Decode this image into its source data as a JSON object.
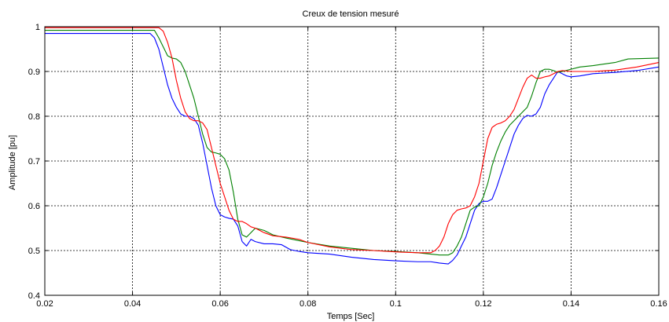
{
  "chart_data": {
    "type": "line",
    "title": "Creux de tension mesuré",
    "xlabel": "Temps [Sec]",
    "ylabel": "Amplitude [pu]",
    "xlim": [
      0.02,
      0.16
    ],
    "ylim": [
      0.4,
      1.0
    ],
    "xticks": [
      0.02,
      0.04,
      0.06,
      0.08,
      0.1,
      0.12,
      0.14,
      0.16
    ],
    "xtick_labels": [
      "0.02",
      "0.04",
      "0.06",
      "0.08",
      "0.1",
      "0.12",
      "0.14",
      "0.16"
    ],
    "yticks": [
      0.4,
      0.5,
      0.6,
      0.7,
      0.8,
      0.9,
      1.0
    ],
    "ytick_labels": [
      "0.4",
      "0.5",
      "0.6",
      "0.7",
      "0.8",
      "0.9",
      "1"
    ],
    "grid": true,
    "series": [
      {
        "color": "#0000ff",
        "points": [
          [
            0.02,
            0.985
          ],
          [
            0.044,
            0.985
          ],
          [
            0.045,
            0.975
          ],
          [
            0.046,
            0.95
          ],
          [
            0.047,
            0.91
          ],
          [
            0.048,
            0.87
          ],
          [
            0.049,
            0.84
          ],
          [
            0.05,
            0.82
          ],
          [
            0.051,
            0.805
          ],
          [
            0.052,
            0.8
          ],
          [
            0.053,
            0.8
          ],
          [
            0.054,
            0.795
          ],
          [
            0.055,
            0.78
          ],
          [
            0.056,
            0.74
          ],
          [
            0.057,
            0.69
          ],
          [
            0.058,
            0.64
          ],
          [
            0.059,
            0.6
          ],
          [
            0.06,
            0.58
          ],
          [
            0.061,
            0.575
          ],
          [
            0.062,
            0.572
          ],
          [
            0.063,
            0.57
          ],
          [
            0.064,
            0.555
          ],
          [
            0.065,
            0.52
          ],
          [
            0.066,
            0.51
          ],
          [
            0.067,
            0.525
          ],
          [
            0.068,
            0.52
          ],
          [
            0.07,
            0.515
          ],
          [
            0.072,
            0.515
          ],
          [
            0.074,
            0.513
          ],
          [
            0.076,
            0.502
          ],
          [
            0.078,
            0.498
          ],
          [
            0.08,
            0.495
          ],
          [
            0.085,
            0.492
          ],
          [
            0.09,
            0.485
          ],
          [
            0.095,
            0.48
          ],
          [
            0.1,
            0.477
          ],
          [
            0.105,
            0.475
          ],
          [
            0.108,
            0.475
          ],
          [
            0.11,
            0.472
          ],
          [
            0.112,
            0.47
          ],
          [
            0.113,
            0.478
          ],
          [
            0.114,
            0.49
          ],
          [
            0.115,
            0.51
          ],
          [
            0.116,
            0.53
          ],
          [
            0.117,
            0.56
          ],
          [
            0.118,
            0.59
          ],
          [
            0.119,
            0.605
          ],
          [
            0.12,
            0.61
          ],
          [
            0.121,
            0.61
          ],
          [
            0.122,
            0.615
          ],
          [
            0.123,
            0.64
          ],
          [
            0.124,
            0.67
          ],
          [
            0.125,
            0.7
          ],
          [
            0.126,
            0.73
          ],
          [
            0.127,
            0.76
          ],
          [
            0.128,
            0.78
          ],
          [
            0.129,
            0.795
          ],
          [
            0.13,
            0.802
          ],
          [
            0.131,
            0.8
          ],
          [
            0.132,
            0.805
          ],
          [
            0.133,
            0.82
          ],
          [
            0.134,
            0.85
          ],
          [
            0.135,
            0.87
          ],
          [
            0.136,
            0.885
          ],
          [
            0.137,
            0.9
          ],
          [
            0.138,
            0.895
          ],
          [
            0.139,
            0.89
          ],
          [
            0.14,
            0.888
          ],
          [
            0.142,
            0.89
          ],
          [
            0.145,
            0.895
          ],
          [
            0.15,
            0.898
          ],
          [
            0.155,
            0.902
          ],
          [
            0.16,
            0.91
          ]
        ]
      },
      {
        "color": "#008000",
        "points": [
          [
            0.02,
            0.992
          ],
          [
            0.045,
            0.992
          ],
          [
            0.046,
            0.975
          ],
          [
            0.047,
            0.955
          ],
          [
            0.048,
            0.935
          ],
          [
            0.049,
            0.93
          ],
          [
            0.05,
            0.928
          ],
          [
            0.051,
            0.92
          ],
          [
            0.052,
            0.9
          ],
          [
            0.053,
            0.87
          ],
          [
            0.054,
            0.84
          ],
          [
            0.055,
            0.8
          ],
          [
            0.056,
            0.76
          ],
          [
            0.057,
            0.73
          ],
          [
            0.058,
            0.72
          ],
          [
            0.059,
            0.718
          ],
          [
            0.06,
            0.715
          ],
          [
            0.061,
            0.705
          ],
          [
            0.062,
            0.68
          ],
          [
            0.063,
            0.63
          ],
          [
            0.064,
            0.57
          ],
          [
            0.065,
            0.535
          ],
          [
            0.066,
            0.53
          ],
          [
            0.067,
            0.54
          ],
          [
            0.068,
            0.55
          ],
          [
            0.07,
            0.545
          ],
          [
            0.072,
            0.535
          ],
          [
            0.075,
            0.528
          ],
          [
            0.078,
            0.522
          ],
          [
            0.08,
            0.518
          ],
          [
            0.085,
            0.51
          ],
          [
            0.09,
            0.505
          ],
          [
            0.095,
            0.5
          ],
          [
            0.1,
            0.498
          ],
          [
            0.105,
            0.495
          ],
          [
            0.11,
            0.49
          ],
          [
            0.112,
            0.49
          ],
          [
            0.113,
            0.495
          ],
          [
            0.114,
            0.51
          ],
          [
            0.115,
            0.53
          ],
          [
            0.116,
            0.56
          ],
          [
            0.117,
            0.59
          ],
          [
            0.118,
            0.597
          ],
          [
            0.119,
            0.6
          ],
          [
            0.12,
            0.62
          ],
          [
            0.121,
            0.65
          ],
          [
            0.122,
            0.69
          ],
          [
            0.123,
            0.72
          ],
          [
            0.124,
            0.745
          ],
          [
            0.125,
            0.765
          ],
          [
            0.126,
            0.78
          ],
          [
            0.127,
            0.79
          ],
          [
            0.128,
            0.8
          ],
          [
            0.129,
            0.81
          ],
          [
            0.13,
            0.82
          ],
          [
            0.131,
            0.845
          ],
          [
            0.132,
            0.875
          ],
          [
            0.133,
            0.9
          ],
          [
            0.134,
            0.905
          ],
          [
            0.135,
            0.905
          ],
          [
            0.136,
            0.902
          ],
          [
            0.137,
            0.898
          ],
          [
            0.138,
            0.9
          ],
          [
            0.14,
            0.905
          ],
          [
            0.142,
            0.91
          ],
          [
            0.145,
            0.913
          ],
          [
            0.15,
            0.92
          ],
          [
            0.153,
            0.928
          ],
          [
            0.16,
            0.93
          ]
        ]
      },
      {
        "color": "#ff0000",
        "points": [
          [
            0.02,
            0.998
          ],
          [
            0.046,
            0.998
          ],
          [
            0.047,
            0.99
          ],
          [
            0.048,
            0.965
          ],
          [
            0.049,
            0.93
          ],
          [
            0.05,
            0.88
          ],
          [
            0.051,
            0.84
          ],
          [
            0.052,
            0.81
          ],
          [
            0.053,
            0.795
          ],
          [
            0.054,
            0.79
          ],
          [
            0.055,
            0.79
          ],
          [
            0.056,
            0.785
          ],
          [
            0.057,
            0.77
          ],
          [
            0.058,
            0.73
          ],
          [
            0.059,
            0.69
          ],
          [
            0.06,
            0.65
          ],
          [
            0.061,
            0.62
          ],
          [
            0.062,
            0.59
          ],
          [
            0.063,
            0.57
          ],
          [
            0.064,
            0.565
          ],
          [
            0.065,
            0.565
          ],
          [
            0.066,
            0.56
          ],
          [
            0.067,
            0.553
          ],
          [
            0.068,
            0.55
          ],
          [
            0.07,
            0.54
          ],
          [
            0.072,
            0.533
          ],
          [
            0.075,
            0.53
          ],
          [
            0.078,
            0.525
          ],
          [
            0.08,
            0.518
          ],
          [
            0.085,
            0.508
          ],
          [
            0.09,
            0.502
          ],
          [
            0.095,
            0.5
          ],
          [
            0.1,
            0.497
          ],
          [
            0.105,
            0.495
          ],
          [
            0.108,
            0.495
          ],
          [
            0.109,
            0.5
          ],
          [
            0.11,
            0.51
          ],
          [
            0.111,
            0.53
          ],
          [
            0.112,
            0.56
          ],
          [
            0.113,
            0.58
          ],
          [
            0.114,
            0.59
          ],
          [
            0.115,
            0.593
          ],
          [
            0.116,
            0.595
          ],
          [
            0.117,
            0.6
          ],
          [
            0.118,
            0.62
          ],
          [
            0.119,
            0.65
          ],
          [
            0.12,
            0.7
          ],
          [
            0.121,
            0.75
          ],
          [
            0.122,
            0.775
          ],
          [
            0.123,
            0.782
          ],
          [
            0.124,
            0.785
          ],
          [
            0.125,
            0.79
          ],
          [
            0.126,
            0.8
          ],
          [
            0.127,
            0.815
          ],
          [
            0.128,
            0.84
          ],
          [
            0.129,
            0.865
          ],
          [
            0.13,
            0.885
          ],
          [
            0.131,
            0.892
          ],
          [
            0.132,
            0.885
          ],
          [
            0.133,
            0.885
          ],
          [
            0.134,
            0.888
          ],
          [
            0.135,
            0.89
          ],
          [
            0.136,
            0.895
          ],
          [
            0.137,
            0.9
          ],
          [
            0.138,
            0.902
          ],
          [
            0.14,
            0.9
          ],
          [
            0.145,
            0.9
          ],
          [
            0.15,
            0.903
          ],
          [
            0.155,
            0.91
          ],
          [
            0.16,
            0.92
          ]
        ]
      }
    ]
  }
}
